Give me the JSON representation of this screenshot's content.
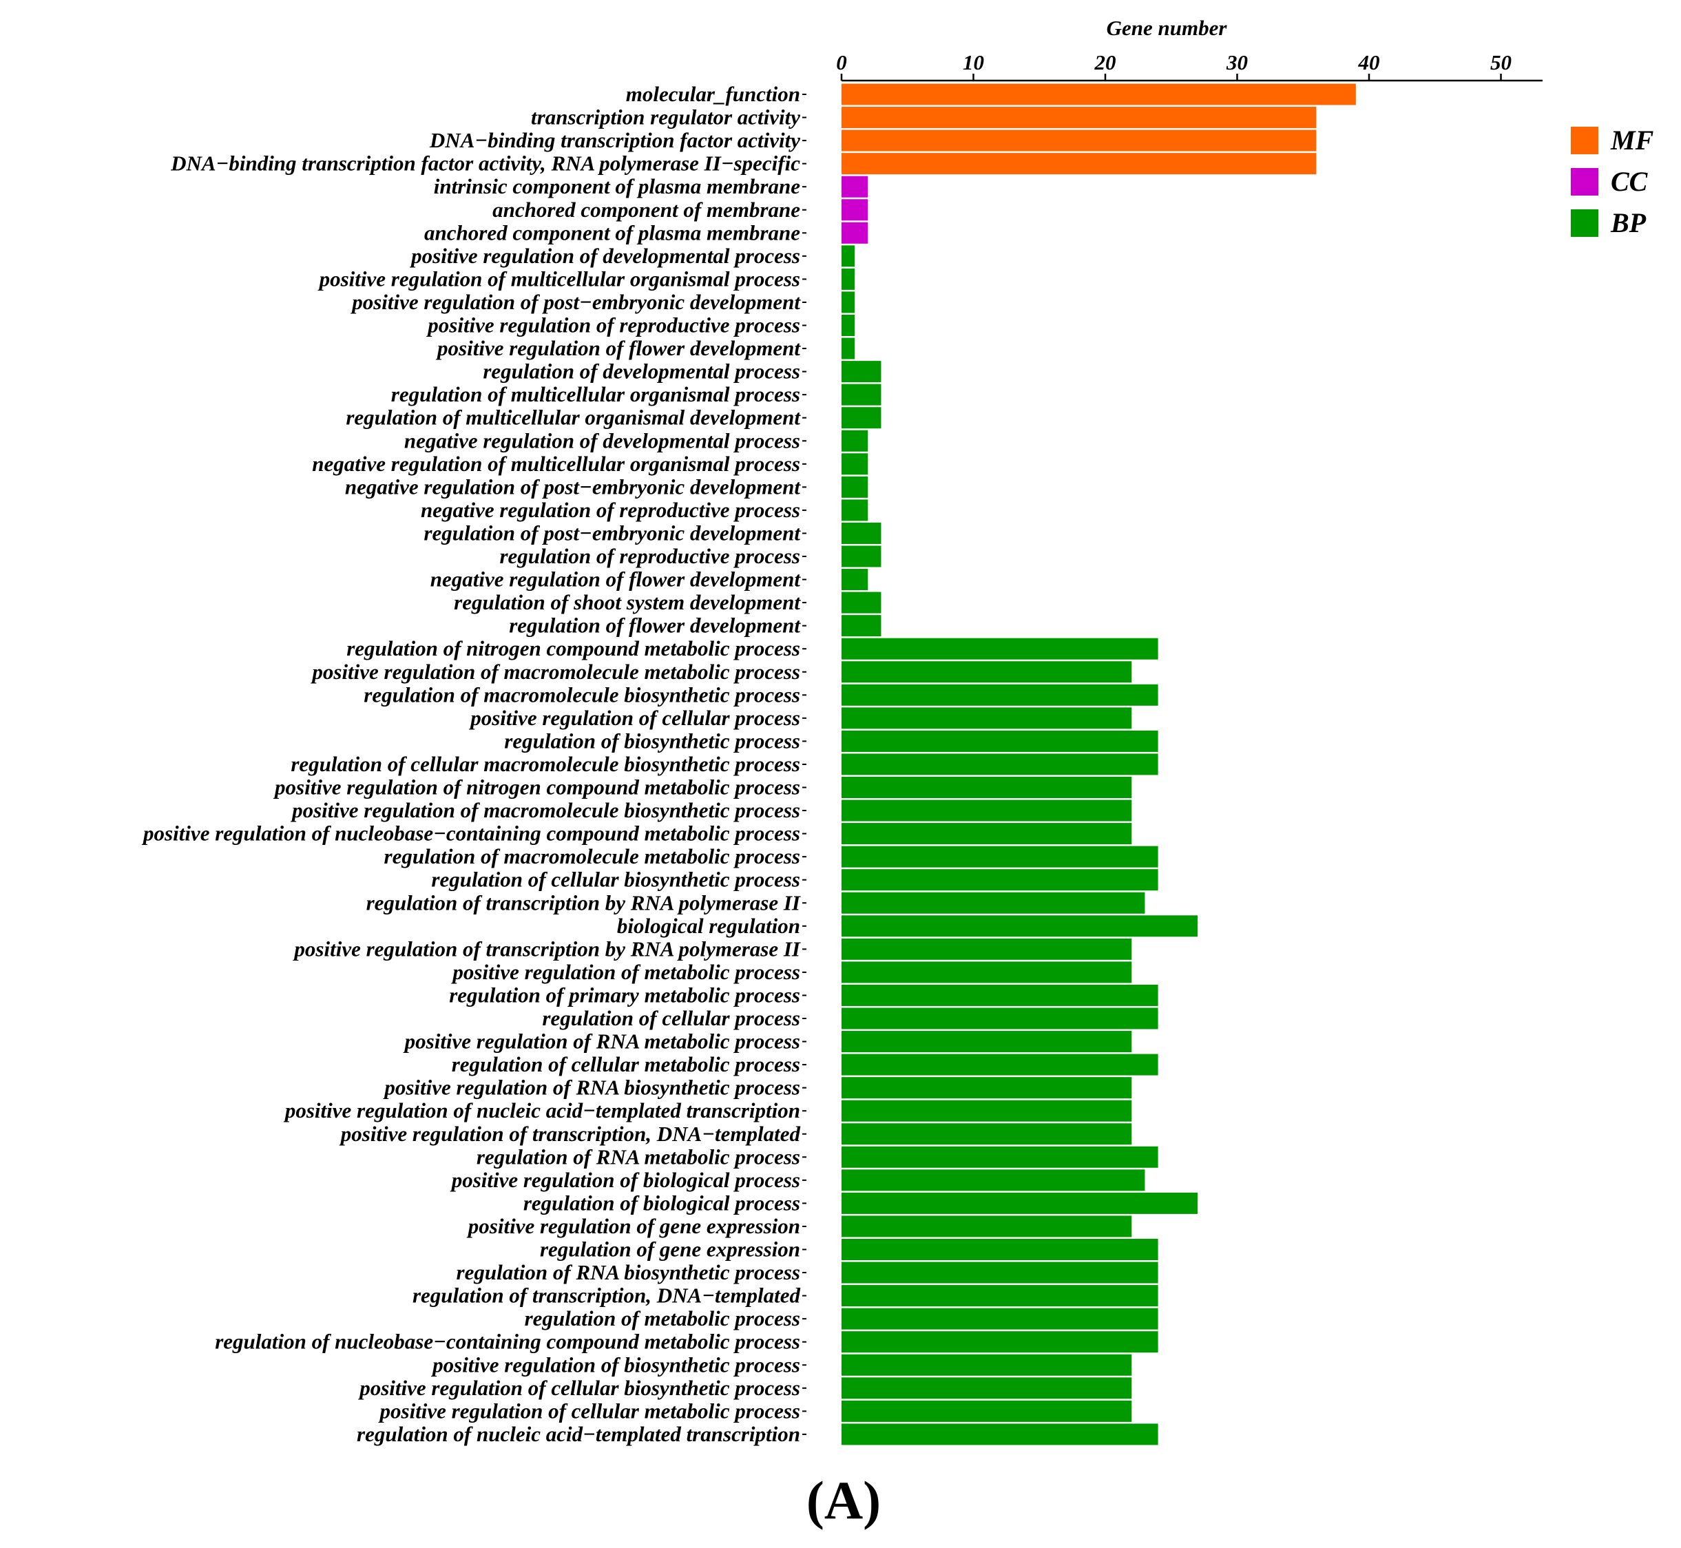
{
  "chart_data": {
    "type": "bar",
    "orientation": "horizontal",
    "xlabel": "Gene number",
    "xlabel_position": "top",
    "xlim": [
      0,
      53
    ],
    "xticks": [
      0,
      10,
      20,
      30,
      40,
      50
    ],
    "grid": false,
    "legend_position": "top-right",
    "panel_label": "(A)",
    "groups": [
      {
        "key": "MF",
        "color": "#ff6600"
      },
      {
        "key": "CC",
        "color": "#cc00cc"
      },
      {
        "key": "BP",
        "color": "#009900"
      }
    ],
    "categories": [
      "molecular_function",
      "transcription regulator activity",
      "DNA−binding transcription factor activity",
      "DNA−binding transcription factor activity, RNA polymerase II−specific",
      "intrinsic component of plasma membrane",
      "anchored component of membrane",
      "anchored component of plasma membrane",
      "positive regulation of developmental process",
      "positive regulation of multicellular organismal process",
      "positive regulation of post−embryonic development",
      "positive regulation of reproductive process",
      "positive regulation of flower development",
      "regulation of developmental process",
      "regulation of multicellular organismal process",
      "regulation of multicellular organismal development",
      "negative regulation of developmental process",
      "negative regulation of multicellular organismal process",
      "negative regulation of post−embryonic development",
      "negative regulation of reproductive process",
      "regulation of post−embryonic development",
      "regulation of reproductive process",
      "negative regulation of flower development",
      "regulation of shoot system development",
      "regulation of flower development",
      "regulation of nitrogen compound metabolic process",
      "positive regulation of macromolecule metabolic process",
      "regulation of macromolecule biosynthetic process",
      "positive regulation of cellular process",
      "regulation of biosynthetic process",
      "regulation of cellular macromolecule biosynthetic process",
      "positive regulation of nitrogen compound metabolic process",
      "positive regulation of macromolecule biosynthetic process",
      "positive regulation of nucleobase−containing compound metabolic process",
      "regulation of macromolecule metabolic process",
      "regulation of cellular biosynthetic process",
      "regulation of transcription by RNA polymerase II",
      "biological regulation",
      "positive regulation of transcription by RNA polymerase II",
      "positive regulation of metabolic process",
      "regulation of primary metabolic process",
      "regulation of cellular process",
      "positive regulation of RNA metabolic process",
      "regulation of cellular metabolic process",
      "positive regulation of RNA biosynthetic process",
      "positive regulation of nucleic acid−templated transcription",
      "positive regulation of transcription, DNA−templated",
      "regulation of RNA metabolic process",
      "positive regulation of biological process",
      "regulation of biological process",
      "positive regulation of gene expression",
      "regulation of gene expression",
      "regulation of RNA biosynthetic process",
      "regulation of transcription, DNA−templated",
      "regulation of metabolic process",
      "regulation of nucleobase−containing compound metabolic process",
      "positive regulation of biosynthetic process",
      "positive regulation of cellular biosynthetic process",
      "positive regulation of cellular metabolic process",
      "regulation of nucleic acid−templated transcription"
    ],
    "values": [
      39,
      36,
      36,
      36,
      2,
      2,
      2,
      1,
      1,
      1,
      1,
      1,
      3,
      3,
      3,
      2,
      2,
      2,
      2,
      3,
      3,
      2,
      3,
      3,
      24,
      22,
      24,
      22,
      24,
      24,
      22,
      22,
      22,
      24,
      24,
      23,
      27,
      22,
      22,
      24,
      24,
      22,
      24,
      22,
      22,
      22,
      24,
      23,
      27,
      22,
      24,
      24,
      24,
      24,
      24,
      22,
      22,
      22,
      24
    ],
    "category_groups": [
      "MF",
      "MF",
      "MF",
      "MF",
      "CC",
      "CC",
      "CC",
      "BP",
      "BP",
      "BP",
      "BP",
      "BP",
      "BP",
      "BP",
      "BP",
      "BP",
      "BP",
      "BP",
      "BP",
      "BP",
      "BP",
      "BP",
      "BP",
      "BP",
      "BP",
      "BP",
      "BP",
      "BP",
      "BP",
      "BP",
      "BP",
      "BP",
      "BP",
      "BP",
      "BP",
      "BP",
      "BP",
      "BP",
      "BP",
      "BP",
      "BP",
      "BP",
      "BP",
      "BP",
      "BP",
      "BP",
      "BP",
      "BP",
      "BP",
      "BP",
      "BP",
      "BP",
      "BP",
      "BP",
      "BP",
      "BP",
      "BP",
      "BP",
      "BP"
    ]
  }
}
